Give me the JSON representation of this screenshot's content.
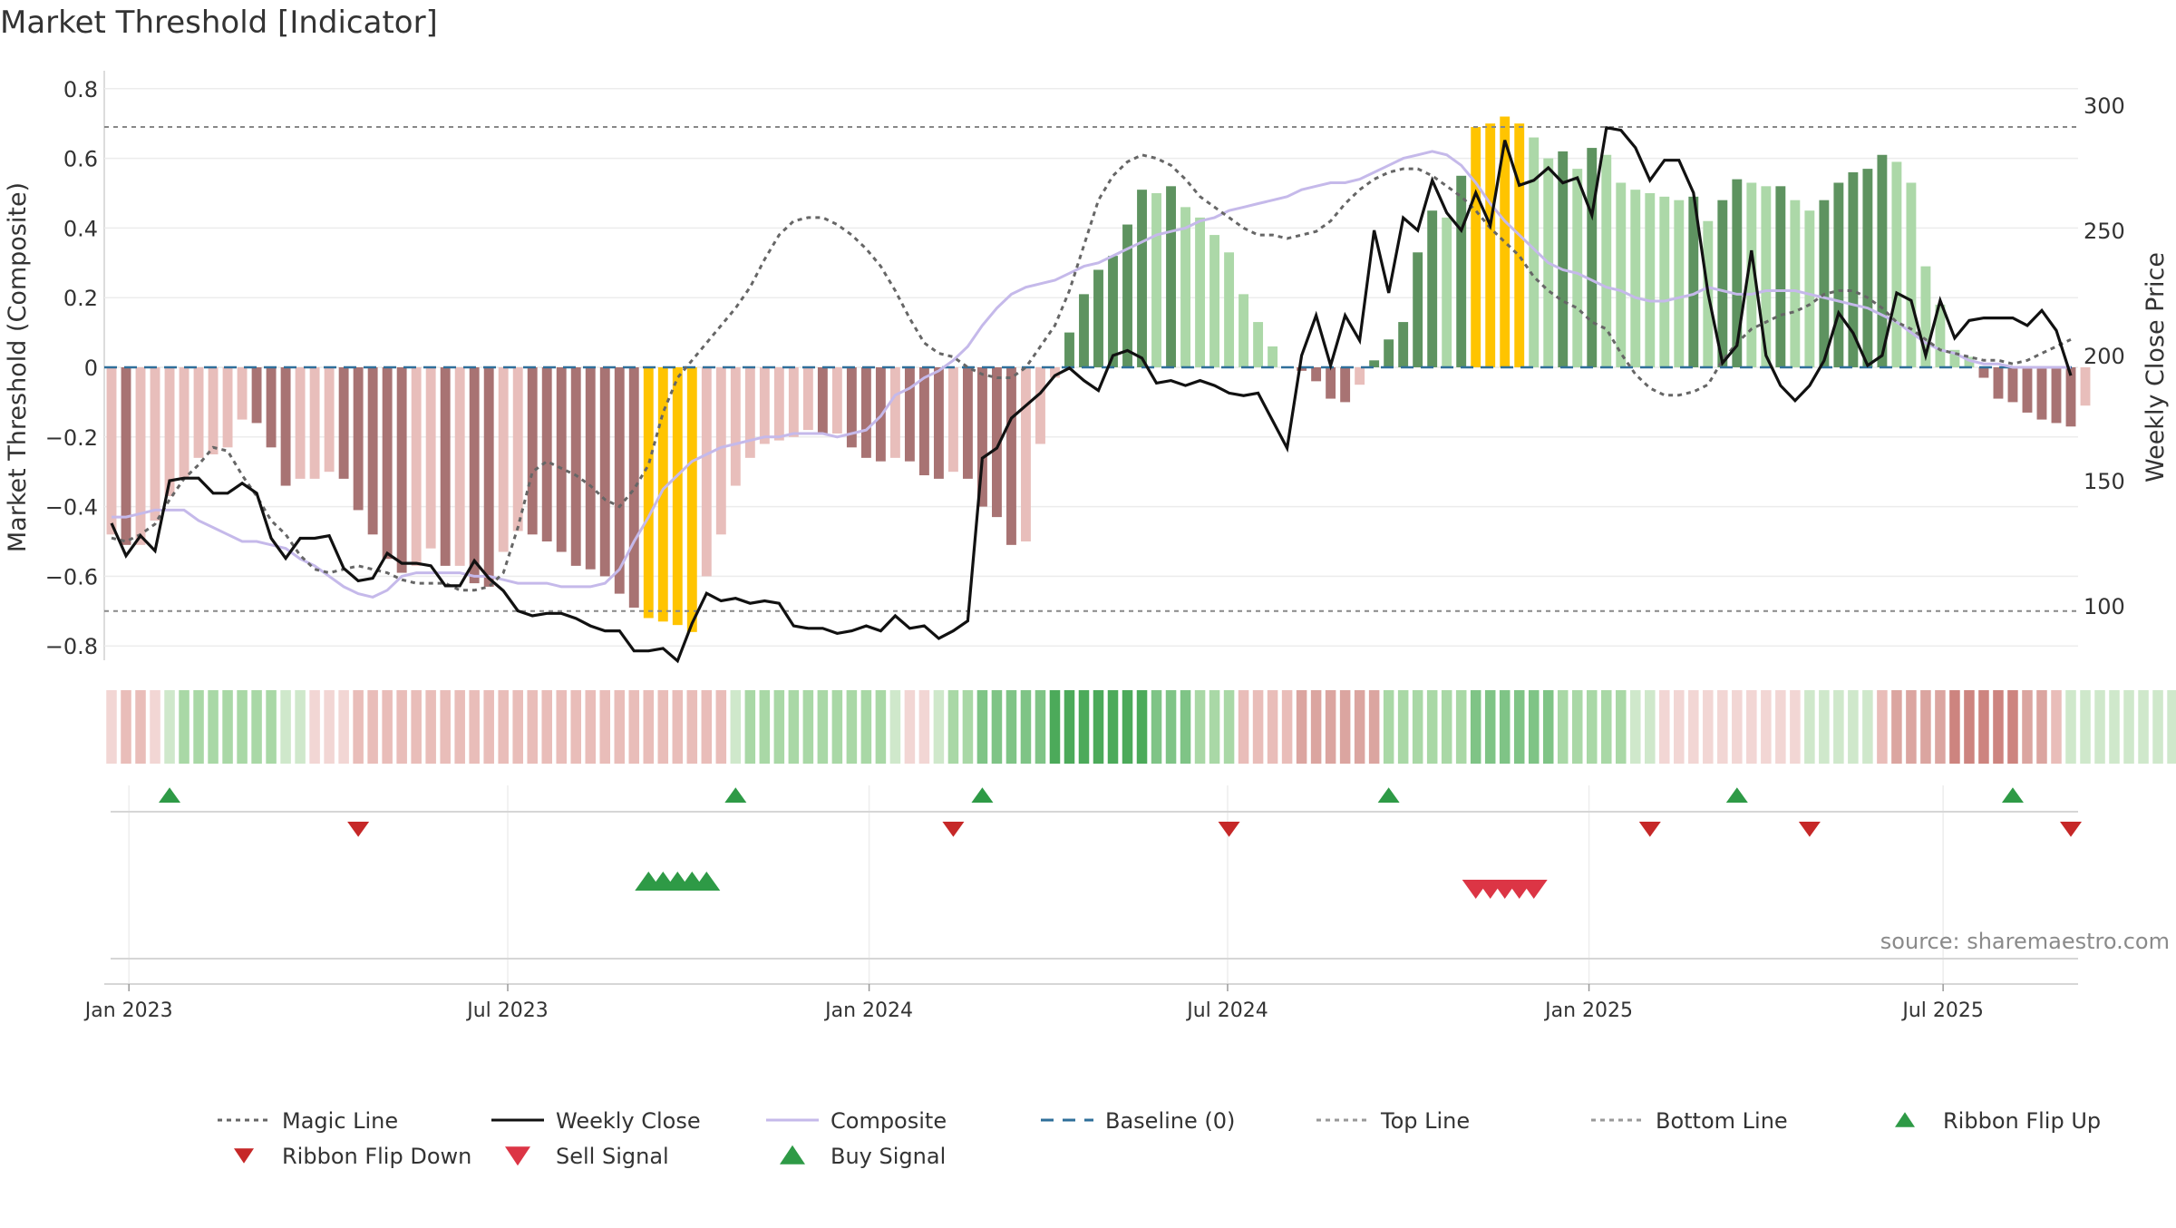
{
  "chart_data": {
    "type": "bar",
    "title": "Market Threshold [Indicator]",
    "ylabel_left": "Market Threshold (Composite)",
    "ylabel_right": "Weekly Close Price",
    "ylim_left": [
      -0.85,
      0.82
    ],
    "ylim_right": [
      83,
      310
    ],
    "left_ticks": [
      "0.8",
      "0.6",
      "0.4",
      "0.2",
      "0",
      "−0.2",
      "−0.4",
      "−0.6",
      "−0.8"
    ],
    "right_ticks": [
      "300",
      "250",
      "200",
      "150",
      "100"
    ],
    "x_ticks": [
      "Jan 2023",
      "Jul 2023",
      "Jan 2024",
      "Jul 2024",
      "Jan 2025",
      "Jul 2025"
    ],
    "top_line": 0.69,
    "bottom_line": -0.7,
    "baseline": 0,
    "source": "source: sharemaestro.com",
    "legend": [
      {
        "label": "Magic Line",
        "kind": "dotted",
        "color": "#666666"
      },
      {
        "label": "Weekly Close",
        "kind": "solid",
        "color": "#111111"
      },
      {
        "label": "Composite",
        "kind": "solid",
        "color": "#c5b9ea"
      },
      {
        "label": "Baseline (0)",
        "kind": "dashed",
        "color": "#2f6f9a"
      },
      {
        "label": "Top Line",
        "kind": "dotted",
        "color": "#999999"
      },
      {
        "label": "Bottom Line",
        "kind": "dotted",
        "color": "#999999"
      },
      {
        "label": "Ribbon Flip Up",
        "kind": "up",
        "color": "#2e9a46"
      },
      {
        "label": "Ribbon Flip Down",
        "kind": "down",
        "color": "#c62828"
      },
      {
        "label": "Sell Signal",
        "kind": "down",
        "color": "#dc3545"
      },
      {
        "label": "Buy Signal",
        "kind": "up",
        "color": "#2e9a46"
      }
    ],
    "colors": {
      "neg_dark": "#a87373",
      "neg_light": "#e8bebb",
      "pos_dark": "#5e9360",
      "pos_light": "#acd8a8",
      "extreme": "#ffc400"
    },
    "weeks": 136,
    "histogram": [
      -0.48,
      -0.51,
      -0.51,
      -0.44,
      -0.37,
      -0.32,
      -0.26,
      -0.25,
      -0.23,
      -0.15,
      -0.16,
      -0.23,
      -0.34,
      -0.32,
      -0.32,
      -0.3,
      -0.32,
      -0.41,
      -0.48,
      -0.55,
      -0.59,
      -0.57,
      -0.52,
      -0.57,
      -0.57,
      -0.62,
      -0.63,
      -0.53,
      -0.47,
      -0.48,
      -0.5,
      -0.53,
      -0.57,
      -0.58,
      -0.6,
      -0.65,
      -0.69,
      -0.72,
      -0.73,
      -0.74,
      -0.76,
      -0.6,
      -0.48,
      -0.34,
      -0.26,
      -0.22,
      -0.21,
      -0.2,
      -0.18,
      -0.19,
      -0.19,
      -0.23,
      -0.26,
      -0.27,
      -0.26,
      -0.27,
      -0.31,
      -0.32,
      -0.3,
      -0.32,
      -0.4,
      -0.43,
      -0.51,
      -0.5,
      -0.22,
      -0.03,
      0.1,
      0.21,
      0.28,
      0.32,
      0.41,
      0.51,
      0.5,
      0.52,
      0.46,
      0.43,
      0.38,
      0.33,
      0.21,
      0.13,
      0.06,
      0.0,
      -0.01,
      -0.04,
      -0.09,
      -0.1,
      -0.05,
      0.02,
      0.08,
      0.13,
      0.33,
      0.45,
      0.43,
      0.55,
      0.69,
      0.7,
      0.72,
      0.7,
      0.66,
      0.6,
      0.62,
      0.57,
      0.63,
      0.61,
      0.53,
      0.51,
      0.5,
      0.49,
      0.48,
      0.49,
      0.42,
      0.48,
      0.54,
      0.53,
      0.52,
      0.52,
      0.48,
      0.45,
      0.48,
      0.53,
      0.56,
      0.57,
      0.61,
      0.59,
      0.53,
      0.29,
      0.18,
      0.05,
      0.03,
      -0.03,
      -0.09,
      -0.1,
      -0.13,
      -0.15,
      -0.16,
      -0.17,
      -0.11
    ],
    "weekly_close": [
      133,
      120,
      128,
      122,
      150,
      151,
      151,
      145,
      145,
      149,
      145,
      127,
      119,
      127,
      127,
      128,
      115,
      110,
      111,
      121,
      117,
      117,
      116,
      108,
      108,
      118,
      111,
      106,
      98,
      96,
      97,
      97,
      95,
      92,
      90,
      90,
      82,
      82,
      83,
      78,
      93,
      105,
      102,
      103,
      101,
      102,
      101,
      92,
      91,
      91,
      89,
      90,
      92,
      90,
      96,
      91,
      92,
      87,
      90,
      94,
      159,
      163,
      175,
      180,
      185,
      192,
      195,
      190,
      186,
      200,
      202,
      199,
      189,
      190,
      188,
      190,
      188,
      185,
      184,
      185,
      174,
      163,
      200,
      216,
      196,
      216,
      206,
      250,
      225,
      255,
      250,
      270,
      257,
      250,
      265,
      252,
      286,
      268,
      270,
      275,
      269,
      271,
      256,
      291,
      290,
      283,
      270,
      278,
      278,
      265,
      225,
      197,
      204,
      242,
      200,
      188,
      182,
      188,
      198,
      217,
      209,
      196,
      200,
      225,
      222,
      200,
      222,
      207,
      214,
      215,
      215,
      215,
      212,
      218,
      210,
      192
    ],
    "magic_line": [
      -0.49,
      -0.5,
      -0.48,
      -0.45,
      -0.38,
      -0.32,
      -0.28,
      -0.23,
      -0.24,
      -0.31,
      -0.37,
      -0.44,
      -0.48,
      -0.54,
      -0.58,
      -0.59,
      -0.58,
      -0.57,
      -0.58,
      -0.59,
      -0.61,
      -0.62,
      -0.62,
      -0.62,
      -0.64,
      -0.64,
      -0.63,
      -0.59,
      -0.46,
      -0.3,
      -0.27,
      -0.29,
      -0.31,
      -0.34,
      -0.38,
      -0.4,
      -0.35,
      -0.28,
      -0.13,
      -0.03,
      0.02,
      0.07,
      0.12,
      0.17,
      0.23,
      0.31,
      0.38,
      0.42,
      0.43,
      0.43,
      0.41,
      0.38,
      0.34,
      0.29,
      0.22,
      0.14,
      0.07,
      0.04,
      0.03,
      0.0,
      -0.02,
      -0.03,
      -0.03,
      0.0,
      0.06,
      0.12,
      0.22,
      0.35,
      0.48,
      0.55,
      0.59,
      0.61,
      0.6,
      0.58,
      0.54,
      0.49,
      0.46,
      0.43,
      0.4,
      0.38,
      0.38,
      0.37,
      0.38,
      0.39,
      0.42,
      0.47,
      0.51,
      0.54,
      0.56,
      0.57,
      0.57,
      0.55,
      0.52,
      0.49,
      0.45,
      0.4,
      0.36,
      0.32,
      0.26,
      0.22,
      0.19,
      0.17,
      0.13,
      0.11,
      0.04,
      -0.02,
      -0.06,
      -0.08,
      -0.08,
      -0.07,
      -0.05,
      0.02,
      0.07,
      0.11,
      0.13,
      0.15,
      0.16,
      0.18,
      0.21,
      0.22,
      0.22,
      0.2,
      0.17,
      0.13,
      0.11,
      0.08,
      0.05,
      0.04,
      0.03,
      0.02,
      0.02,
      0.01,
      0.02,
      0.04,
      0.06,
      0.08
    ],
    "composite": [
      -0.43,
      -0.43,
      -0.42,
      -0.41,
      -0.41,
      -0.41,
      -0.44,
      -0.46,
      -0.48,
      -0.5,
      -0.5,
      -0.51,
      -0.52,
      -0.55,
      -0.57,
      -0.6,
      -0.63,
      -0.65,
      -0.66,
      -0.64,
      -0.6,
      -0.59,
      -0.59,
      -0.59,
      -0.59,
      -0.6,
      -0.6,
      -0.61,
      -0.62,
      -0.62,
      -0.62,
      -0.63,
      -0.63,
      -0.63,
      -0.62,
      -0.58,
      -0.5,
      -0.43,
      -0.35,
      -0.31,
      -0.27,
      -0.25,
      -0.23,
      -0.22,
      -0.21,
      -0.2,
      -0.2,
      -0.19,
      -0.19,
      -0.19,
      -0.2,
      -0.19,
      -0.18,
      -0.14,
      -0.08,
      -0.06,
      -0.03,
      -0.01,
      0.02,
      0.06,
      0.12,
      0.17,
      0.21,
      0.23,
      0.24,
      0.25,
      0.27,
      0.29,
      0.3,
      0.32,
      0.34,
      0.36,
      0.38,
      0.39,
      0.4,
      0.42,
      0.43,
      0.45,
      0.46,
      0.47,
      0.48,
      0.49,
      0.51,
      0.52,
      0.53,
      0.53,
      0.54,
      0.56,
      0.58,
      0.6,
      0.61,
      0.62,
      0.61,
      0.58,
      0.53,
      0.47,
      0.42,
      0.38,
      0.34,
      0.3,
      0.28,
      0.27,
      0.25,
      0.23,
      0.22,
      0.2,
      0.19,
      0.19,
      0.2,
      0.21,
      0.23,
      0.22,
      0.21,
      0.21,
      0.22,
      0.22,
      0.22,
      0.21,
      0.2,
      0.19,
      0.18,
      0.17,
      0.15,
      0.13,
      0.1,
      0.07,
      0.05,
      0.04,
      0.02,
      0.01,
      0.01,
      0.0,
      0.0,
      0.0,
      0.0,
      0.0
    ],
    "ribbon_strength": [
      -1,
      -2,
      -2,
      -1,
      1,
      2,
      2,
      2,
      2,
      2,
      2,
      2,
      1,
      1,
      -1,
      -1,
      -1,
      -2,
      -2,
      -2,
      -2,
      -2,
      -2,
      -2,
      -2,
      -2,
      -2,
      -2,
      -2,
      -2,
      -2,
      -2,
      -2,
      -2,
      -2,
      -2,
      -2,
      -2,
      -2,
      -2,
      -2,
      -2,
      -2,
      1,
      2,
      2,
      2,
      2,
      2,
      2,
      2,
      2,
      2,
      2,
      1,
      -1,
      -1,
      1,
      2,
      2,
      3,
      3,
      3,
      3,
      3,
      4,
      4,
      4,
      4,
      4,
      4,
      4,
      3,
      3,
      3,
      2,
      2,
      2,
      -2,
      -2,
      -2,
      -2,
      -3,
      -3,
      -3,
      -3,
      -3,
      -3,
      2,
      2,
      2,
      2,
      2,
      2,
      3,
      3,
      3,
      3,
      3,
      3,
      2,
      2,
      2,
      2,
      2,
      1,
      1,
      -1,
      -1,
      -1,
      -1,
      -1,
      -1,
      -1,
      -1,
      -1,
      -1,
      1,
      1,
      1,
      1,
      1,
      -2,
      -3,
      -3,
      -3,
      -3,
      -4,
      -4,
      -4,
      -4,
      -4,
      -3,
      -3,
      -2,
      1,
      1,
      1,
      1,
      1,
      1,
      1,
      1,
      1,
      1,
      -1
    ],
    "ribbon_flip_up_weeks": [
      4,
      43,
      60,
      88,
      112,
      131
    ],
    "ribbon_flip_down_weeks": [
      17,
      58,
      77,
      106,
      117,
      135
    ],
    "buy_signal_weeks": [
      37,
      38,
      39,
      40,
      41
    ],
    "sell_signal_weeks": [
      94,
      95,
      96,
      97,
      98
    ]
  }
}
